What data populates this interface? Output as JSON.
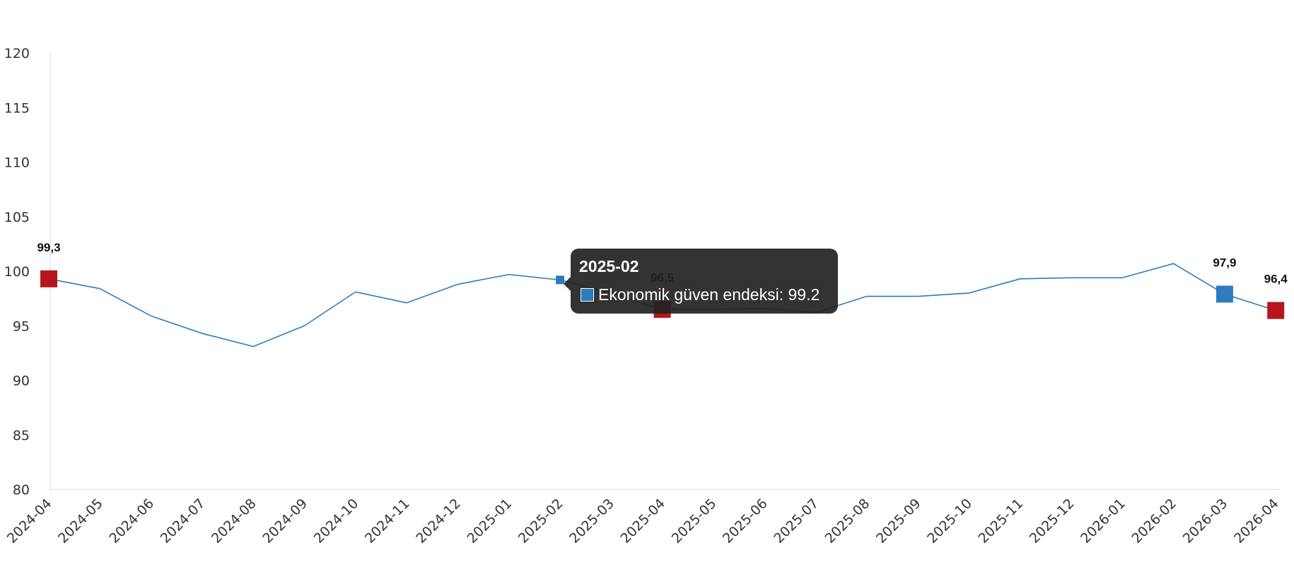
{
  "chart_data": {
    "type": "line",
    "title": "",
    "xlabel": "",
    "ylabel": "",
    "categories": [
      "2024-04",
      "2024-05",
      "2024-06",
      "2024-07",
      "2024-08",
      "2024-09",
      "2024-10",
      "2024-11",
      "2024-12",
      "2025-01",
      "2025-02",
      "2025-03",
      "2025-04",
      "2025-05",
      "2025-06",
      "2025-07",
      "2025-08",
      "2025-09",
      "2025-10",
      "2025-11",
      "2025-12",
      "2026-01",
      "2026-02",
      "2026-03",
      "2026-04"
    ],
    "series": [
      {
        "name": "Ekonomik güven endeksi",
        "color": "#2e7bbf",
        "values": [
          99.3,
          98.4,
          95.9,
          94.3,
          93.1,
          95.0,
          98.1,
          97.1,
          98.8,
          99.7,
          99.2,
          98.0,
          96.5,
          96.5,
          96.6,
          96.2,
          97.7,
          97.7,
          98.0,
          99.3,
          99.4,
          99.4,
          100.7,
          97.9,
          96.4
        ]
      }
    ],
    "ylim": [
      80,
      120
    ],
    "yticks": [
      80,
      85,
      90,
      95,
      100,
      105,
      110,
      115,
      120
    ],
    "grid": false,
    "legend": "none",
    "highlighted_points": [
      {
        "index": 0,
        "label": "99,3",
        "color": "#b5161b"
      },
      {
        "index": 12,
        "label": "96,5",
        "color": "#b5161b"
      },
      {
        "index": 23,
        "label": "97,9",
        "color": "#2e7bbf"
      },
      {
        "index": 24,
        "label": "96,4",
        "color": "#b5161b"
      }
    ],
    "hovered_index": 10
  },
  "tooltip": {
    "title": "2025-02",
    "series_name": "Ekonomik güven endeksi",
    "value_text": "99.2",
    "separator": ": ",
    "swatch_color": "#2e7bbf"
  }
}
